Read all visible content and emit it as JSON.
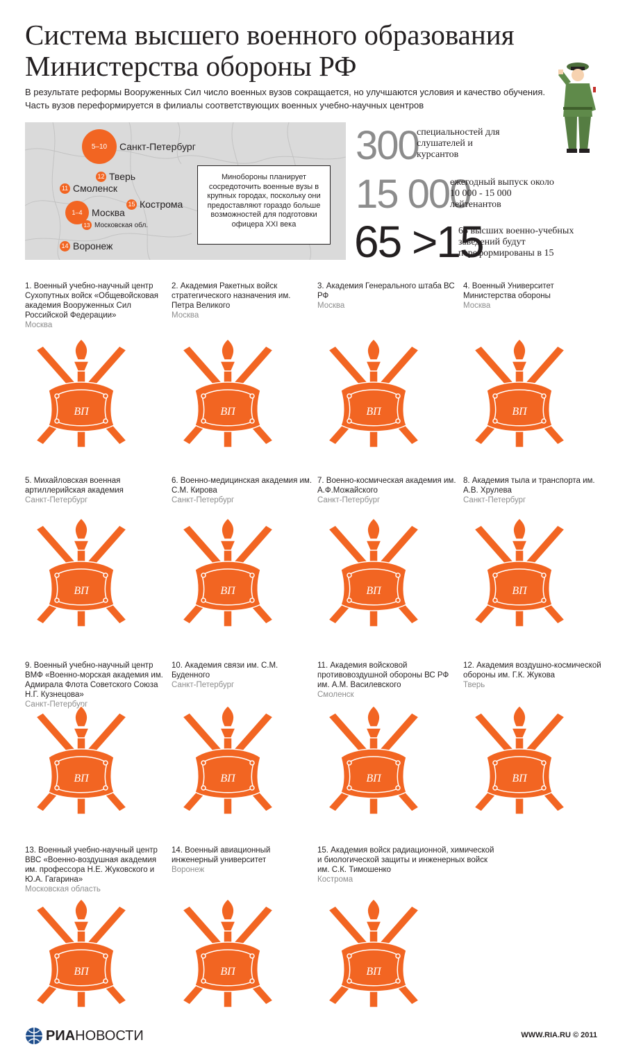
{
  "title_line1": "Система высшего военного образования",
  "title_line2": "Министерства обороны РФ",
  "lead": "В результате реформы Вооруженных Сил число военных вузов сокращается, но улучшаются условия и качество обучения. Часть вузов переформируется в филиалы соответствующих военных учебно-научных центров",
  "map": {
    "cities": [
      {
        "badge": "5–10",
        "name": "Санкт-Петербург"
      },
      {
        "badge": "12",
        "name": "Тверь"
      },
      {
        "badge": "11",
        "name": "Смоленск"
      },
      {
        "badge": "1–4",
        "name": "Москва"
      },
      {
        "badge": "13",
        "name": "Московская обл."
      },
      {
        "badge": "15",
        "name": "Кострома"
      },
      {
        "badge": "14",
        "name": "Воронеж"
      }
    ],
    "note": "Минобороны планирует сосредоточить военные вузы в крупных городах, поскольку они предоставляют гораздо больше возможностей для подготовки офицера XXI века"
  },
  "stats": [
    {
      "value": "300",
      "text": "специальностей для слушателей и курсантов"
    },
    {
      "value": "15 000",
      "text": "ежегодный выпуск около 10 000 - 15 000 лейтенантов"
    },
    {
      "value": "65 >15",
      "text": "65 высших военно-учебных заведений будут переформированы в 15"
    }
  ],
  "academies": [
    {
      "name": "1. Военный учебно-научный центр Сухопутных войск «Общевойсковая академия Вооруженных Сил Российской Федерации»",
      "city": "Москва"
    },
    {
      "name": "2. Академия Ракетных войск стратегического назначения им. Петра Великого",
      "city": "Москва"
    },
    {
      "name": "3. Академия Генерального штаба ВС РФ",
      "city": "Москва"
    },
    {
      "name": "4. Военный Университет Министерства обороны",
      "city": "Москва"
    },
    {
      "name": "5. Михайловская военная артиллерийская академия",
      "city": "Санкт-Петербург"
    },
    {
      "name": "6. Военно-медицинская академия им. С.М. Кирова",
      "city": "Санкт-Петербург"
    },
    {
      "name": "7. Военно-космическая академия им. А.Ф.Можайского",
      "city": "Санкт-Петербург"
    },
    {
      "name": "8. Академия тыла и транспорта им. А.В. Хрулева",
      "city": "Санкт-Петербург"
    },
    {
      "name": "9. Военный учебно-научный центр ВМФ «Военно-морская академия им. Адмирала Флота Советского Союза Н.Г. Кузнецова»",
      "city": "Санкт-Петербург"
    },
    {
      "name": "10. Академия связи им. С.М. Буденного",
      "city": "Санкт-Петербург"
    },
    {
      "name": "11. Академия войсковой противовоздушной обороны ВС РФ им. А.М. Василевского",
      "city": "Смоленск"
    },
    {
      "name": "12. Академия воздушно-космической обороны им. Г.К. Жукова",
      "city": "Тверь"
    },
    {
      "name": "13. Военный учебно-научный центр ВВС «Военно-воздушная академия им. профессора Н.Е. Жуковского и Ю.А. Гагарина»",
      "city": "Московская область"
    },
    {
      "name": "14. Военный авиационный инженерный университет",
      "city": "Воронеж"
    },
    {
      "name": "15. Академия войск радиационной, химической и биологической защиты и инженерных войск им. С.К. Тимошенко",
      "city": "Кострома"
    }
  ],
  "emblem_letters": "ВП",
  "footer": {
    "logo_a": "РИА",
    "logo_b": "НОВОСТИ",
    "copyright": "WWW.RIA.RU © 2011"
  },
  "colors": {
    "accent": "#f26522",
    "map_bg": "#dadada",
    "muted": "#8c8c8c",
    "text": "#231f20",
    "soldier": "#5f8a4a"
  }
}
